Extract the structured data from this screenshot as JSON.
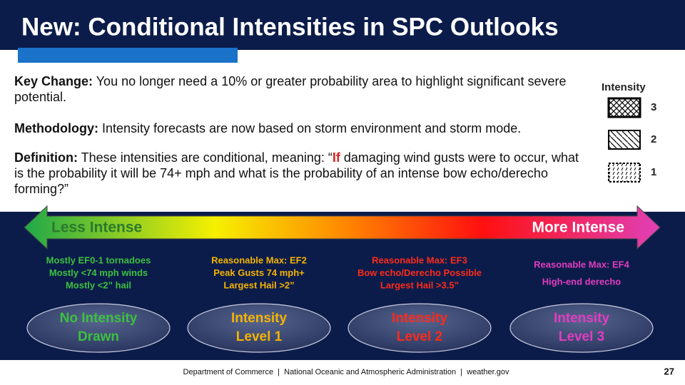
{
  "header": {
    "title": "New: Conditional Intensities in SPC Outlooks"
  },
  "paragraphs": [
    {
      "label": "Key Change:",
      "text": " You no longer need a 10% or greater probability area to highlight significant severe potential."
    },
    {
      "label": "Methodology:",
      "text": " Intensity forecasts are now based on storm environment and storm mode."
    },
    {
      "label": "Definition:",
      "text": " These intensities are conditional, meaning: “",
      "emphasis": "If",
      "text_after": " damaging wind gusts were to occur, what is the probability it will be 74+ mph and what is the probability of an intense bow echo/derecho forming?”"
    }
  ],
  "legend": {
    "title": "Intensity",
    "levels": [
      "3",
      "2",
      "1"
    ]
  },
  "arrow": {
    "left_label": "Less Intense",
    "right_label": "More Intense"
  },
  "columns": [
    {
      "lines": [
        "Mostly EF0-1 tornadoes",
        "Mostly <74 mph winds",
        "Mostly <2” hail"
      ],
      "oval": [
        "No Intensity",
        "Drawn"
      ]
    },
    {
      "lines": [
        "Reasonable Max: EF2",
        "Peak Gusts 74 mph+",
        "Largest Hail >2”"
      ],
      "oval": [
        "Intensity",
        "Level 1"
      ]
    },
    {
      "lines": [
        "Reasonable Max: EF3",
        "Bow echo/Derecho Possible",
        "Largest Hail >3.5”"
      ],
      "oval": [
        "Intensity",
        "Level 2"
      ]
    },
    {
      "lines": [
        "Reasonable Max: EF4",
        "High-end derecho"
      ],
      "oval": [
        "Intensity",
        "Level 3"
      ]
    }
  ],
  "footer": {
    "text": "Department of Commerce  |  National Oceanic and Atmospheric Administration  |  weather.gov",
    "page": "27"
  }
}
